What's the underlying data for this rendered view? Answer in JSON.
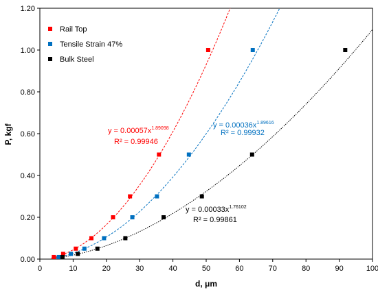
{
  "chart_data": {
    "type": "scatter",
    "xlabel": "d, μm",
    "ylabel": "P, kgf",
    "xlim": [
      0,
      100
    ],
    "ylim": [
      0,
      1.2
    ],
    "x_ticks": [
      0,
      10,
      20,
      30,
      40,
      50,
      60,
      70,
      80,
      90,
      100
    ],
    "y_ticks": [
      0,
      0.2,
      0.4,
      0.6,
      0.8,
      1.0,
      1.2
    ],
    "x_tick_labels": [
      "0",
      "10",
      "20",
      "30",
      "40",
      "50",
      "60",
      "70",
      "80",
      "90",
      "100"
    ],
    "y_tick_labels": [
      "0.00",
      "0.20",
      "0.40",
      "0.60",
      "0.80",
      "1.00",
      "1.20"
    ],
    "grid": false,
    "legend_position": "top-left",
    "series": [
      {
        "name": "Rail Top",
        "color": "#ff0000",
        "trendline_style": "dashed",
        "fit": {
          "a": 0.00057,
          "b": 1.89098
        },
        "x": [
          4.2,
          7.0,
          10.8,
          15.5,
          22.0,
          27.1,
          35.8,
          50.6
        ],
        "y": [
          0.01,
          0.025,
          0.05,
          0.1,
          0.2,
          0.3,
          0.5,
          1.0
        ],
        "equation_prefix": "y = 0.00057x",
        "equation_exponent": "1.89098",
        "r2": "R² = 0.99946"
      },
      {
        "name": "Tensile Strain 47%",
        "color": "#0070c0",
        "trendline_style": "dashed",
        "fit": {
          "a": 0.00036,
          "b": 1.89616
        },
        "x": [
          5.7,
          9.3,
          13.4,
          19.3,
          27.8,
          35.2,
          44.8,
          64.0
        ],
        "y": [
          0.01,
          0.025,
          0.05,
          0.1,
          0.2,
          0.3,
          0.5,
          1.0
        ],
        "equation_prefix": "y = 0.00036x",
        "equation_exponent": "1.89616",
        "r2": "R² = 0.99932"
      },
      {
        "name": "Bulk Steel",
        "color": "#000000",
        "trendline_style": "dotted",
        "fit": {
          "a": 0.00033,
          "b": 1.76102
        },
        "x": [
          6.8,
          11.4,
          17.3,
          25.7,
          37.2,
          48.7,
          63.8,
          91.8
        ],
        "y": [
          0.01,
          0.025,
          0.05,
          0.1,
          0.2,
          0.3,
          0.5,
          1.0
        ],
        "equation_prefix": "y = 0.00033x",
        "equation_exponent": "1.76102",
        "r2": "R² = 0.99861"
      }
    ]
  }
}
